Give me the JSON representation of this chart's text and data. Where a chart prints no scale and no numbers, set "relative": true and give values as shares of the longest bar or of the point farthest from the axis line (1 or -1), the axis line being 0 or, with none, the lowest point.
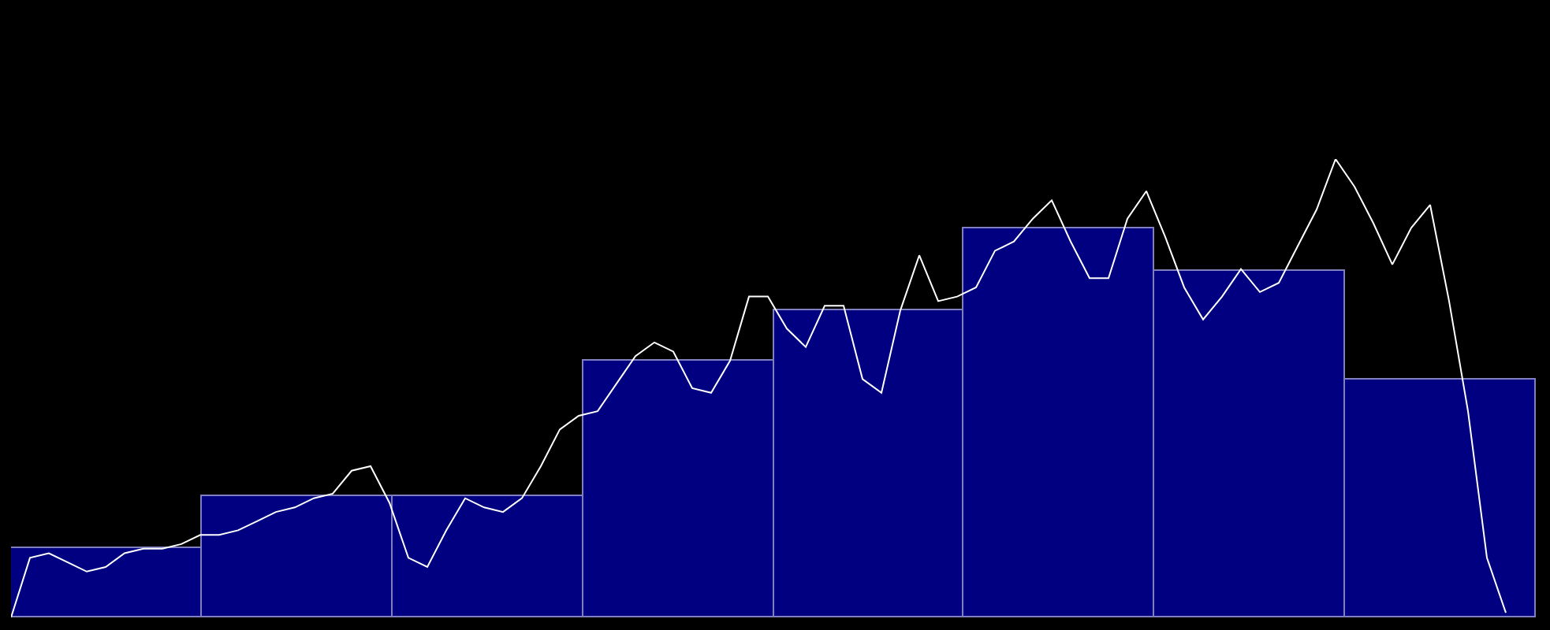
{
  "chart_data": [
    {
      "type": "bar",
      "relative": true,
      "categories": [
        null,
        null,
        null,
        null,
        null,
        null,
        null,
        null
      ],
      "series": [
        {
          "color": "#000080",
          "values": [
            0.18,
            0.31,
            0.31,
            0.66,
            0.79,
            1,
            0.89,
            0.61
          ]
        }
      ]
    },
    {
      "type": "line",
      "relative": true,
      "categories": [
        null,
        null,
        null,
        null,
        null,
        null,
        null,
        null,
        null,
        null,
        null,
        null,
        null,
        null,
        null,
        null,
        null,
        null,
        null,
        null,
        null,
        null,
        null,
        null,
        null,
        null,
        null,
        null,
        null,
        null,
        null,
        null,
        null,
        null,
        null,
        null,
        null,
        null,
        null,
        null,
        null,
        null,
        null,
        null,
        null,
        null,
        null,
        null,
        null,
        null,
        null,
        null,
        null,
        null,
        null,
        null,
        null,
        null,
        null,
        null,
        null,
        null,
        null,
        null,
        null,
        null,
        null,
        null,
        null,
        null,
        null,
        null,
        null,
        null,
        null,
        null,
        null,
        null,
        null,
        null
      ],
      "series": [
        {
          "color": "#ffffff",
          "values": [
            0,
            0.13,
            0.14,
            0.12,
            0.1,
            0.11,
            0.14,
            0.15,
            0.15,
            0.16,
            0.18,
            0.18,
            0.19,
            0.21,
            0.23,
            0.24,
            0.26,
            0.27,
            0.32,
            0.33,
            0.25,
            0.13,
            0.11,
            0.19,
            0.26,
            0.24,
            0.23,
            0.26,
            0.33,
            0.41,
            0.44,
            0.45,
            0.51,
            0.57,
            0.6,
            0.58,
            0.5,
            0.49,
            0.56,
            0.7,
            0.7,
            0.63,
            0.59,
            0.68,
            0.68,
            0.52,
            0.49,
            0.67,
            0.79,
            0.69,
            0.7,
            0.72,
            0.8,
            0.82,
            0.87,
            0.91,
            0.82,
            0.74,
            0.74,
            0.87,
            0.93,
            0.83,
            0.72,
            0.65,
            0.7,
            0.76,
            0.71,
            0.73,
            0.81,
            0.89,
            1,
            0.94,
            0.86,
            0.77,
            0.85,
            0.9,
            0.69,
            0.45,
            0.13,
            0.01
          ]
        }
      ]
    }
  ]
}
